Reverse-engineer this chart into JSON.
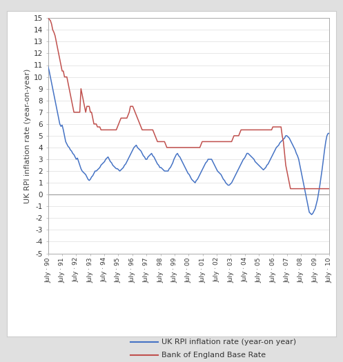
{
  "ylabel": "UK RPI inflation rate (year-on-year)",
  "ylim": [
    -5,
    15
  ],
  "yticks": [
    -5,
    -4,
    -3,
    -2,
    -1,
    0,
    1,
    2,
    3,
    4,
    5,
    6,
    7,
    8,
    9,
    10,
    11,
    12,
    13,
    14,
    15
  ],
  "x_labels": [
    "July · 90",
    "July · 91",
    "July · 92",
    "July · 93",
    "July · 94",
    "July · 95",
    "July · 96",
    "July · 97",
    "July · 98",
    "July · 99",
    "July · 00",
    "July · 01",
    "July · 02",
    "July · 03",
    "July · 04",
    "July · 05",
    "July · 06",
    "July · 07",
    "July · 08",
    "July · 09",
    "July · 10"
  ],
  "rpi_color": "#4472C4",
  "boe_color": "#C0504D",
  "background_color": "#FFFFFF",
  "outer_bg": "#E0E0E0",
  "legend_rpi": "UK RPI inflation rate (year-on year)",
  "legend_boe": "Bank of England Base Rate",
  "rpi_data": [
    10.9,
    10.5,
    10.0,
    9.5,
    9.0,
    8.5,
    8.0,
    7.5,
    7.0,
    6.5,
    6.0,
    5.8,
    5.9,
    5.5,
    5.0,
    4.5,
    4.3,
    4.1,
    4.0,
    3.8,
    3.7,
    3.5,
    3.4,
    3.2,
    3.0,
    3.1,
    2.8,
    2.5,
    2.2,
    2.0,
    1.9,
    1.8,
    1.7,
    1.5,
    1.3,
    1.2,
    1.3,
    1.5,
    1.6,
    1.8,
    2.0,
    2.0,
    2.1,
    2.2,
    2.3,
    2.5,
    2.6,
    2.7,
    2.8,
    3.0,
    3.1,
    3.2,
    3.0,
    2.8,
    2.7,
    2.5,
    2.4,
    2.3,
    2.2,
    2.2,
    2.1,
    2.0,
    2.1,
    2.2,
    2.3,
    2.5,
    2.6,
    2.8,
    3.0,
    3.2,
    3.4,
    3.6,
    3.8,
    4.0,
    4.1,
    4.2,
    4.0,
    3.9,
    3.8,
    3.7,
    3.5,
    3.3,
    3.2,
    3.0,
    3.0,
    3.2,
    3.3,
    3.4,
    3.5,
    3.3,
    3.2,
    3.0,
    2.8,
    2.6,
    2.5,
    2.3,
    2.3,
    2.2,
    2.1,
    2.0,
    2.0,
    2.0,
    2.0,
    2.2,
    2.3,
    2.5,
    2.7,
    3.0,
    3.2,
    3.4,
    3.5,
    3.3,
    3.2,
    3.0,
    2.8,
    2.6,
    2.4,
    2.2,
    2.0,
    1.8,
    1.7,
    1.5,
    1.3,
    1.2,
    1.1,
    1.0,
    1.2,
    1.3,
    1.5,
    1.7,
    1.9,
    2.1,
    2.3,
    2.5,
    2.7,
    2.8,
    3.0,
    3.0,
    3.0,
    3.0,
    2.8,
    2.6,
    2.4,
    2.2,
    2.0,
    1.9,
    1.8,
    1.7,
    1.5,
    1.3,
    1.2,
    1.0,
    0.9,
    0.8,
    0.8,
    0.9,
    1.0,
    1.2,
    1.4,
    1.6,
    1.8,
    2.0,
    2.2,
    2.4,
    2.6,
    2.8,
    3.0,
    3.1,
    3.3,
    3.5,
    3.5,
    3.4,
    3.3,
    3.2,
    3.1,
    3.0,
    2.8,
    2.7,
    2.6,
    2.5,
    2.4,
    2.3,
    2.2,
    2.1,
    2.2,
    2.3,
    2.5,
    2.6,
    2.8,
    3.0,
    3.2,
    3.4,
    3.6,
    3.8,
    4.0,
    4.1,
    4.2,
    4.4,
    4.5,
    4.6,
    4.7,
    4.8,
    5.0,
    5.0,
    4.9,
    4.8,
    4.6,
    4.4,
    4.2,
    4.0,
    3.8,
    3.5,
    3.3,
    3.0,
    2.5,
    2.0,
    1.5,
    1.0,
    0.5,
    0.0,
    -0.5,
    -1.0,
    -1.5,
    -1.6,
    -1.7,
    -1.6,
    -1.4,
    -1.2,
    -0.8,
    -0.4,
    0.2,
    0.8,
    1.5,
    2.2,
    3.0,
    3.8,
    4.5,
    5.0,
    5.2,
    5.2
  ],
  "boe_data": [
    15.0,
    14.9,
    14.8,
    14.5,
    14.0,
    13.8,
    13.5,
    13.0,
    12.5,
    12.0,
    11.5,
    11.0,
    10.5,
    10.5,
    10.0,
    10.0,
    10.0,
    9.5,
    9.0,
    8.5,
    8.0,
    7.5,
    7.0,
    7.0,
    7.0,
    7.0,
    7.0,
    7.0,
    9.0,
    8.5,
    8.0,
    7.5,
    7.0,
    7.5,
    7.5,
    7.5,
    7.0,
    7.0,
    6.5,
    6.0,
    6.0,
    6.0,
    5.75,
    5.75,
    5.75,
    5.5,
    5.5,
    5.5,
    5.5,
    5.5,
    5.5,
    5.5,
    5.5,
    5.5,
    5.5,
    5.5,
    5.5,
    5.5,
    5.5,
    5.75,
    6.0,
    6.25,
    6.5,
    6.5,
    6.5,
    6.5,
    6.5,
    6.5,
    6.75,
    7.0,
    7.5,
    7.5,
    7.5,
    7.25,
    7.0,
    6.75,
    6.5,
    6.25,
    6.0,
    5.75,
    5.5,
    5.5,
    5.5,
    5.5,
    5.5,
    5.5,
    5.5,
    5.5,
    5.5,
    5.5,
    5.25,
    5.0,
    4.75,
    4.5,
    4.5,
    4.5,
    4.5,
    4.5,
    4.5,
    4.5,
    4.25,
    4.0,
    4.0,
    4.0,
    4.0,
    4.0,
    4.0,
    4.0,
    4.0,
    4.0,
    4.0,
    4.0,
    4.0,
    4.0,
    4.0,
    4.0,
    4.0,
    4.0,
    4.0,
    4.0,
    4.0,
    4.0,
    4.0,
    4.0,
    4.0,
    4.0,
    4.0,
    4.0,
    4.0,
    4.0,
    4.25,
    4.5,
    4.5,
    4.5,
    4.5,
    4.5,
    4.5,
    4.5,
    4.5,
    4.5,
    4.5,
    4.5,
    4.5,
    4.5,
    4.5,
    4.5,
    4.5,
    4.5,
    4.5,
    4.5,
    4.5,
    4.5,
    4.5,
    4.5,
    4.5,
    4.5,
    4.5,
    4.75,
    5.0,
    5.0,
    5.0,
    5.0,
    5.0,
    5.25,
    5.5,
    5.5,
    5.5,
    5.5,
    5.5,
    5.5,
    5.5,
    5.5,
    5.5,
    5.5,
    5.5,
    5.5,
    5.5,
    5.5,
    5.5,
    5.5,
    5.5,
    5.5,
    5.5,
    5.5,
    5.5,
    5.5,
    5.5,
    5.5,
    5.5,
    5.5,
    5.5,
    5.75,
    5.75,
    5.75,
    5.75,
    5.75,
    5.75,
    5.75,
    5.75,
    5.0,
    4.5,
    3.5,
    2.5,
    2.0,
    1.5,
    1.0,
    0.5,
    0.5,
    0.5,
    0.5,
    0.5,
    0.5,
    0.5,
    0.5,
    0.5,
    0.5,
    0.5,
    0.5,
    0.5,
    0.5,
    0.5,
    0.5,
    0.5,
    0.5,
    0.5,
    0.5,
    0.5,
    0.5,
    0.5,
    0.5,
    0.5,
    0.5,
    0.5,
    0.5,
    0.5,
    0.5,
    0.5,
    0.5,
    0.5,
    0.5
  ]
}
